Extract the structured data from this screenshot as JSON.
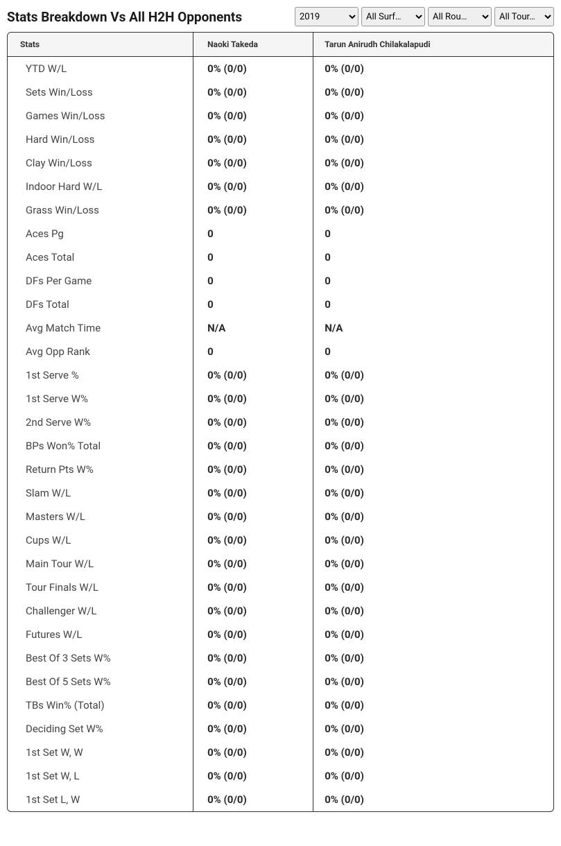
{
  "title": "Stats Breakdown Vs All H2H Opponents",
  "filters": {
    "year": {
      "selected": "2019",
      "options": [
        "2019"
      ]
    },
    "surface": {
      "selected": "All Surf…",
      "options": [
        "All Surf…"
      ]
    },
    "round": {
      "selected": "All Rou…",
      "options": [
        "All Rou…"
      ]
    },
    "tour": {
      "selected": "All Tour…",
      "options": [
        "All Tour…"
      ]
    }
  },
  "table": {
    "columns": [
      "Stats",
      "Naoki Takeda",
      "Tarun Anirudh Chilakalapudi"
    ],
    "rows": [
      [
        "YTD W/L",
        "0% (0/0)",
        "0% (0/0)"
      ],
      [
        "Sets Win/Loss",
        "0% (0/0)",
        "0% (0/0)"
      ],
      [
        "Games Win/Loss",
        "0% (0/0)",
        "0% (0/0)"
      ],
      [
        "Hard Win/Loss",
        "0% (0/0)",
        "0% (0/0)"
      ],
      [
        "Clay Win/Loss",
        "0% (0/0)",
        "0% (0/0)"
      ],
      [
        "Indoor Hard W/L",
        "0% (0/0)",
        "0% (0/0)"
      ],
      [
        "Grass Win/Loss",
        "0% (0/0)",
        "0% (0/0)"
      ],
      [
        "Aces Pg",
        "0",
        "0"
      ],
      [
        "Aces Total",
        "0",
        "0"
      ],
      [
        "DFs Per Game",
        "0",
        "0"
      ],
      [
        "DFs Total",
        "0",
        "0"
      ],
      [
        "Avg Match Time",
        "N/A",
        "N/A"
      ],
      [
        "Avg Opp Rank",
        "0",
        "0"
      ],
      [
        "1st Serve %",
        "0% (0/0)",
        "0% (0/0)"
      ],
      [
        "1st Serve W%",
        "0% (0/0)",
        "0% (0/0)"
      ],
      [
        "2nd Serve W%",
        "0% (0/0)",
        "0% (0/0)"
      ],
      [
        "BPs Won% Total",
        "0% (0/0)",
        "0% (0/0)"
      ],
      [
        "Return Pts W%",
        "0% (0/0)",
        "0% (0/0)"
      ],
      [
        "Slam W/L",
        "0% (0/0)",
        "0% (0/0)"
      ],
      [
        "Masters W/L",
        "0% (0/0)",
        "0% (0/0)"
      ],
      [
        "Cups W/L",
        "0% (0/0)",
        "0% (0/0)"
      ],
      [
        "Main Tour W/L",
        "0% (0/0)",
        "0% (0/0)"
      ],
      [
        "Tour Finals W/L",
        "0% (0/0)",
        "0% (0/0)"
      ],
      [
        "Challenger W/L",
        "0% (0/0)",
        "0% (0/0)"
      ],
      [
        "Futures W/L",
        "0% (0/0)",
        "0% (0/0)"
      ],
      [
        "Best Of 3 Sets W%",
        "0% (0/0)",
        "0% (0/0)"
      ],
      [
        "Best Of 5 Sets W%",
        "0% (0/0)",
        "0% (0/0)"
      ],
      [
        "TBs Win% (Total)",
        "0% (0/0)",
        "0% (0/0)"
      ],
      [
        "Deciding Set W%",
        "0% (0/0)",
        "0% (0/0)"
      ],
      [
        "1st Set W, W",
        "0% (0/0)",
        "0% (0/0)"
      ],
      [
        "1st Set W, L",
        "0% (0/0)",
        "0% (0/0)"
      ],
      [
        "1st Set L, W",
        "0% (0/0)",
        "0% (0/0)"
      ]
    ]
  }
}
